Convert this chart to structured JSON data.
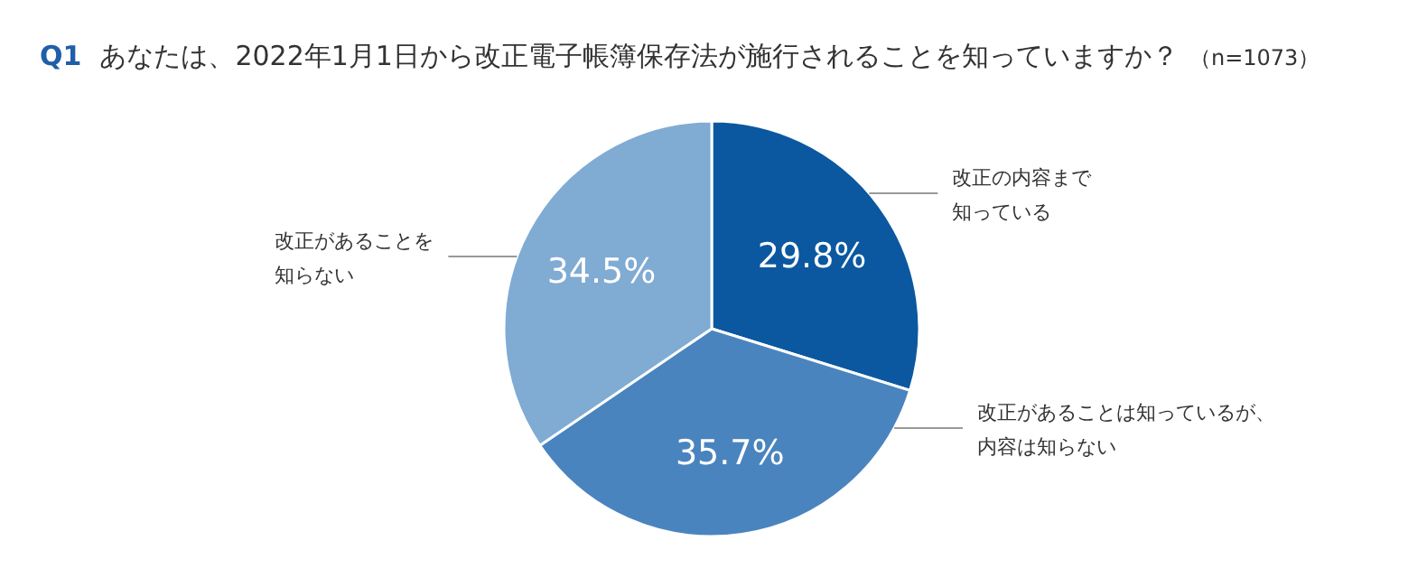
{
  "chart_data": {
    "type": "pie",
    "title": "Q1　あなたは、2022年1月1日から改正電子帳簿保存法が施行されることを知っていますか？",
    "annotations": [
      "（n=1073）"
    ],
    "categories": [
      "改正の内容まで知っている",
      "改正があることは知っているが、内容は知らない",
      "改正があることを知らない"
    ],
    "values": [
      29.8,
      35.7,
      34.5
    ],
    "colors": [
      "#0b58a0",
      "#4a84bf",
      "#80abd3"
    ],
    "value_labels": [
      "29.8%",
      "35.7%",
      "34.5%"
    ]
  }
}
